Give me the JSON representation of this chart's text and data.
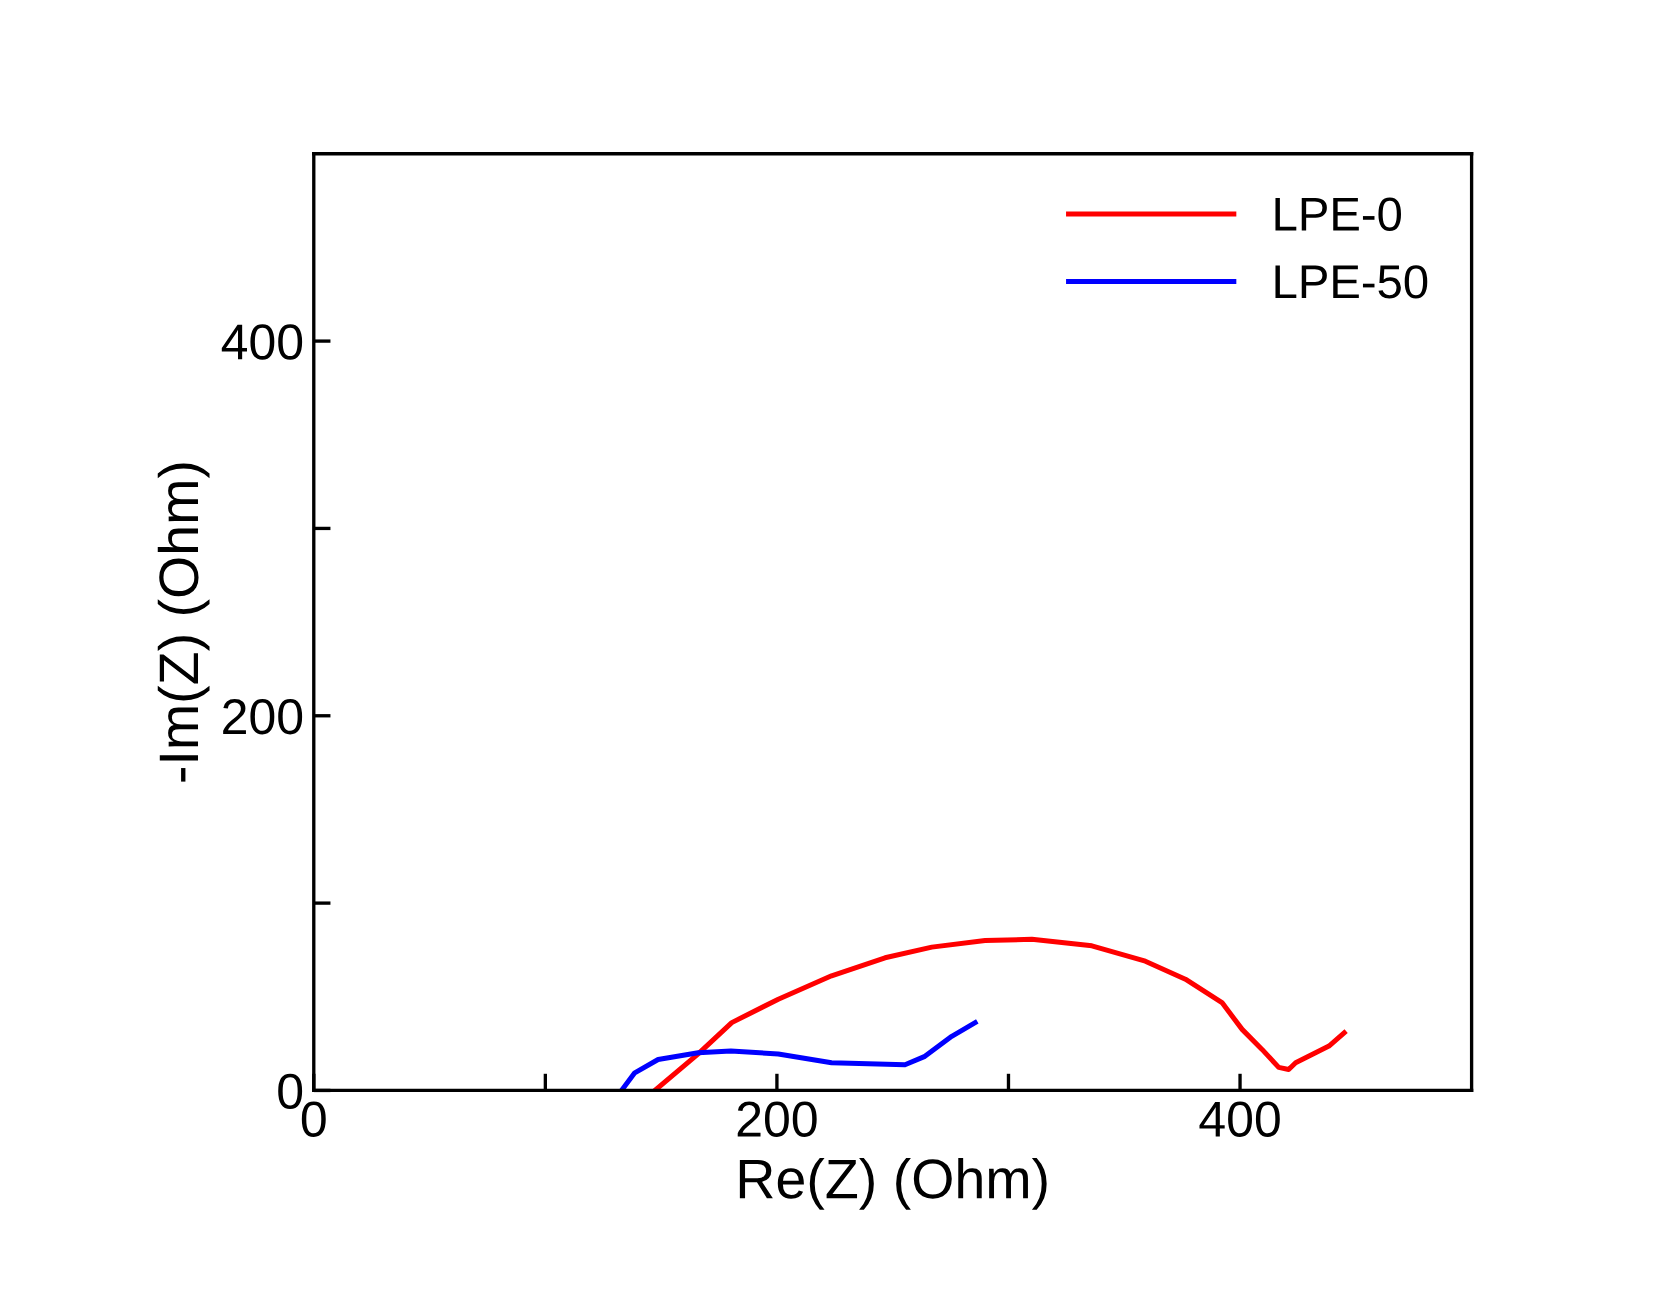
{
  "chart_data": {
    "type": "line",
    "xlabel": "Re(Z) (Ohm)",
    "ylabel": "-Im(Z) (Ohm)",
    "xlim": [
      0,
      500
    ],
    "ylim": [
      0,
      500
    ],
    "xticks": [
      0,
      {
        "value": 100,
        "label": null
      },
      200,
      {
        "value": 300,
        "label": null
      },
      400
    ],
    "yticks": [
      0,
      {
        "value": 100,
        "label": null
      },
      200,
      {
        "value": 300,
        "label": null
      },
      400
    ],
    "grid": false,
    "legend": "top right",
    "marker": "none",
    "line_style": "solid",
    "series": [
      {
        "name": "LPE-0",
        "color": "#ff0000",
        "x": [
          147.3,
          166,
          180.5,
          200.6,
          223.6,
          246.7,
          266.9,
          289.9,
          310.1,
          336.0,
          359.1,
          376.4,
          392.2,
          400.9,
          409.5,
          416.7,
          421,
          424,
          438.4,
          445
        ],
        "values": [
          0,
          19.5,
          36.2,
          48.7,
          61.2,
          70.8,
          76.5,
          80,
          80.7,
          77.2,
          69,
          59.4,
          46.9,
          32.6,
          21.9,
          12.3,
          11.2,
          14.8,
          23.7,
          30.8
        ]
      },
      {
        "name": "LPE-50",
        "color": "#0000ff",
        "x": [
          132.9,
          138.6,
          148.7,
          166,
          180.1,
          200.6,
          223.6,
          255.3,
          263.9,
          275.5,
          285.6
        ],
        "values": [
          0,
          9.4,
          16.5,
          20.1,
          21.1,
          19.5,
          14.8,
          13.7,
          18.2,
          28.9,
          36.2
        ]
      }
    ]
  }
}
